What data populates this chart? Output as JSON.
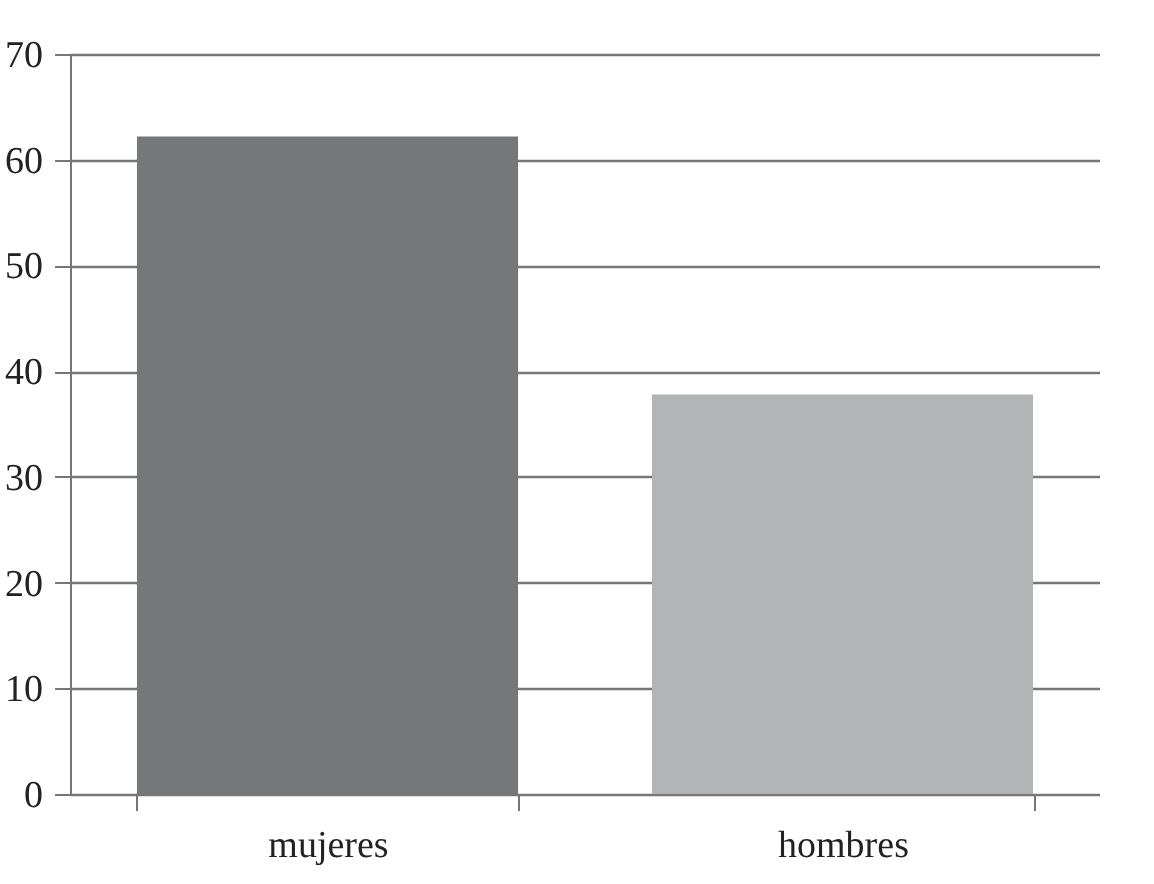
{
  "chart_data": {
    "type": "bar",
    "categories": [
      "mujeres",
      "hombres"
    ],
    "values": [
      62.2,
      37.8
    ],
    "colors": [
      "#747878",
      "#b2b5b5"
    ],
    "ylim": [
      0,
      70
    ],
    "yticks": [
      0,
      10,
      20,
      30,
      40,
      50,
      60,
      70
    ],
    "grid": "y"
  }
}
